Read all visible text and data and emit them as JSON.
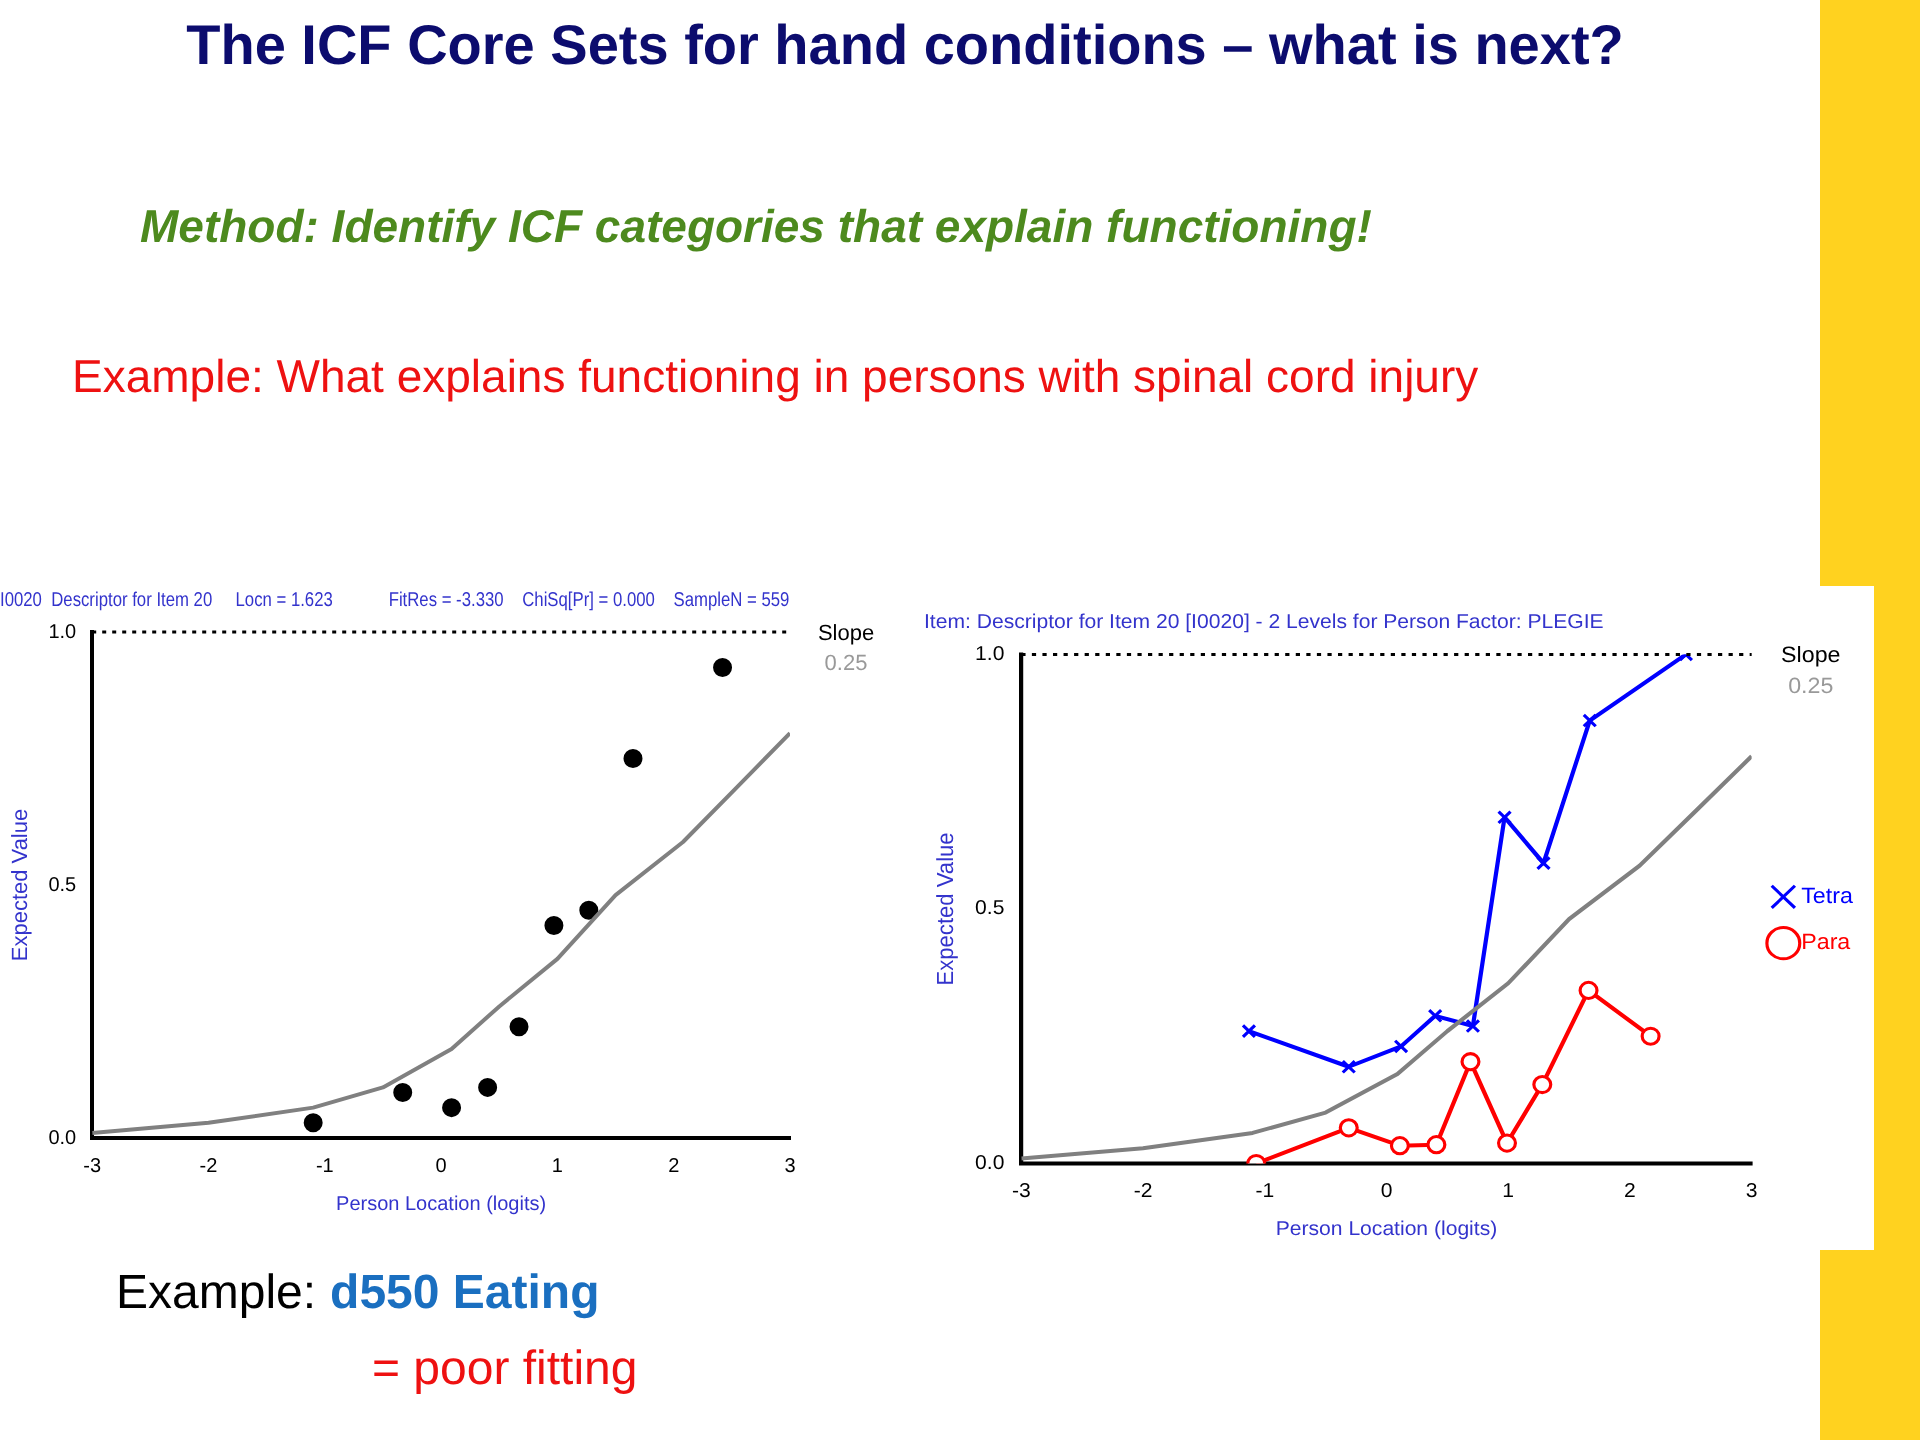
{
  "chart_data": [
    {
      "type": "other",
      "title": "The ICF Core Sets for hand conditions – what is next?",
      "subtitle": "Method: Identify ICF categories that explain functioning!",
      "annotations": [
        "Example: What explains functioning in persons with spinal cord injury"
      ]
    },
    {
      "type": "scatter",
      "title": "I0020  Descriptor for Item 20     Locn = 1.623            FitRes = -3.330    ChiSq[Pr] = 0.000    SampleN = 559",
      "xlabel": "Person Location (logits)",
      "ylabel": "Expected Value",
      "xlim": [
        -3,
        3
      ],
      "xticks": [
        -3,
        -2,
        -1,
        0,
        1,
        2,
        3
      ],
      "ylim": [
        0,
        1
      ],
      "yticks": [
        {
          "value": 0,
          "label": "0.0"
        },
        {
          "value": 0.5,
          "label": "0.5"
        },
        {
          "value": 1,
          "label": "1.0"
        }
      ],
      "ref_lines": [
        {
          "axis": "y",
          "value": 1,
          "color": "#000000",
          "line_style": "dotted"
        }
      ],
      "annotations": [
        "Slope",
        "0.25"
      ],
      "legend": false,
      "series": [
        {
          "type": "line",
          "color": "#808080",
          "marker": "none",
          "x": [
            -3,
            -2,
            -1.1,
            -0.5,
            0.09,
            0.5,
            1,
            1.5,
            2.08,
            2.53,
            3
          ],
          "values": [
            0.01,
            0.03,
            0.06,
            0.1,
            0.176,
            0.26,
            0.354,
            0.48,
            0.585,
            0.69,
            0.8
          ]
        },
        {
          "type": "scatter",
          "color": "#000000",
          "marker": "circle",
          "x": [
            -1.1,
            -0.33,
            0.09,
            0.4,
            0.67,
            0.97,
            1.27,
            1.65,
            2.42
          ],
          "values": [
            0.03,
            0.09,
            0.06,
            0.1,
            0.22,
            0.42,
            0.45,
            0.75,
            0.93
          ]
        }
      ]
    },
    {
      "type": "line",
      "title": "Item: Descriptor for Item 20 [I0020] - 2 Levels for Person Factor: PLEGIE",
      "xlabel": "Person Location (logits)",
      "ylabel": "Expected Value",
      "xlim": [
        -3,
        3
      ],
      "xticks": [
        -3,
        -2,
        -1,
        0,
        1,
        2,
        3
      ],
      "ylim": [
        0,
        1
      ],
      "yticks": [
        {
          "value": 0,
          "label": "0.0"
        },
        {
          "value": 0.5,
          "label": "0.5"
        },
        {
          "value": 1,
          "label": "1.0"
        }
      ],
      "ref_lines": [
        {
          "axis": "y",
          "value": 1,
          "color": "#000000",
          "line_style": "dotted"
        }
      ],
      "annotations": [
        "Slope",
        "0.25"
      ],
      "legend": "right",
      "series": [
        {
          "type": "line",
          "color": "#808080",
          "marker": "none",
          "x": [
            -3,
            -2,
            -1.1,
            -0.5,
            0.09,
            0.5,
            1,
            1.5,
            2.08,
            2.53,
            3
          ],
          "values": [
            0.01,
            0.03,
            0.06,
            0.1,
            0.176,
            0.26,
            0.354,
            0.48,
            0.585,
            0.69,
            0.8
          ]
        },
        {
          "name": "Tetra",
          "color": "#0000ff",
          "marker": "cross",
          "x": [
            -1.13,
            -0.31,
            0.12,
            0.4,
            0.71,
            0.97,
            1.29,
            1.67,
            2.46
          ],
          "values": [
            0.26,
            0.19,
            0.23,
            0.29,
            0.27,
            0.68,
            0.59,
            0.87,
            1.0
          ]
        },
        {
          "name": "Para",
          "color": "#ff0000",
          "marker": "circle",
          "x": [
            -1.07,
            -0.31,
            0.11,
            0.41,
            0.69,
            0.99,
            1.28,
            1.66,
            2.17
          ],
          "values": [
            0.0,
            0.07,
            0.035,
            0.037,
            0.2,
            0.04,
            0.155,
            0.34,
            0.25
          ]
        }
      ]
    },
    {
      "type": "other",
      "annotations": [
        "Example:",
        "d550 Eating",
        "= poor fitting"
      ]
    }
  ]
}
